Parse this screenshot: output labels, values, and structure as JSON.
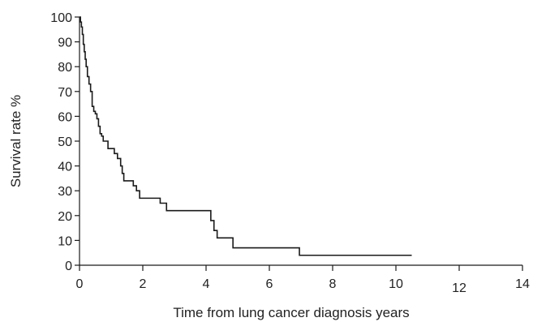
{
  "chart_data": {
    "type": "line",
    "title": "",
    "xlabel": "Time from lung cancer diagnosis years",
    "ylabel": "Survival rate %",
    "xlim": [
      0,
      14
    ],
    "ylim": [
      0,
      100
    ],
    "x_ticks": [
      "0",
      "2",
      "4",
      "6",
      "8",
      "10",
      "12",
      "14"
    ],
    "y_ticks": [
      "0",
      "10",
      "20",
      "30",
      "40",
      "50",
      "60",
      "70",
      "80",
      "90",
      "100"
    ],
    "grid": false,
    "legend": "none",
    "line_color": "#1a1a1a",
    "series": [
      {
        "step": true,
        "x": [
          0,
          0.03,
          0.06,
          0.09,
          0.12,
          0.15,
          0.18,
          0.21,
          0.25,
          0.3,
          0.35,
          0.4,
          0.45,
          0.5,
          0.55,
          0.6,
          0.65,
          0.7,
          0.75,
          0.8,
          0.9,
          1.0,
          1.1,
          1.2,
          1.3,
          1.35,
          1.4,
          1.7,
          1.8,
          1.9,
          2.55,
          2.75,
          4.0,
          4.15,
          4.25,
          4.35,
          4.85,
          6.95,
          10.5
        ],
        "y": [
          100,
          98,
          96,
          93,
          89,
          86,
          83,
          80,
          76,
          73,
          70,
          64,
          62,
          61,
          59,
          56,
          53,
          52,
          50,
          50,
          47,
          47,
          45,
          43,
          40,
          37,
          34,
          32,
          30,
          27,
          25,
          22,
          22,
          18,
          14,
          11,
          7,
          4,
          4
        ]
      }
    ]
  }
}
